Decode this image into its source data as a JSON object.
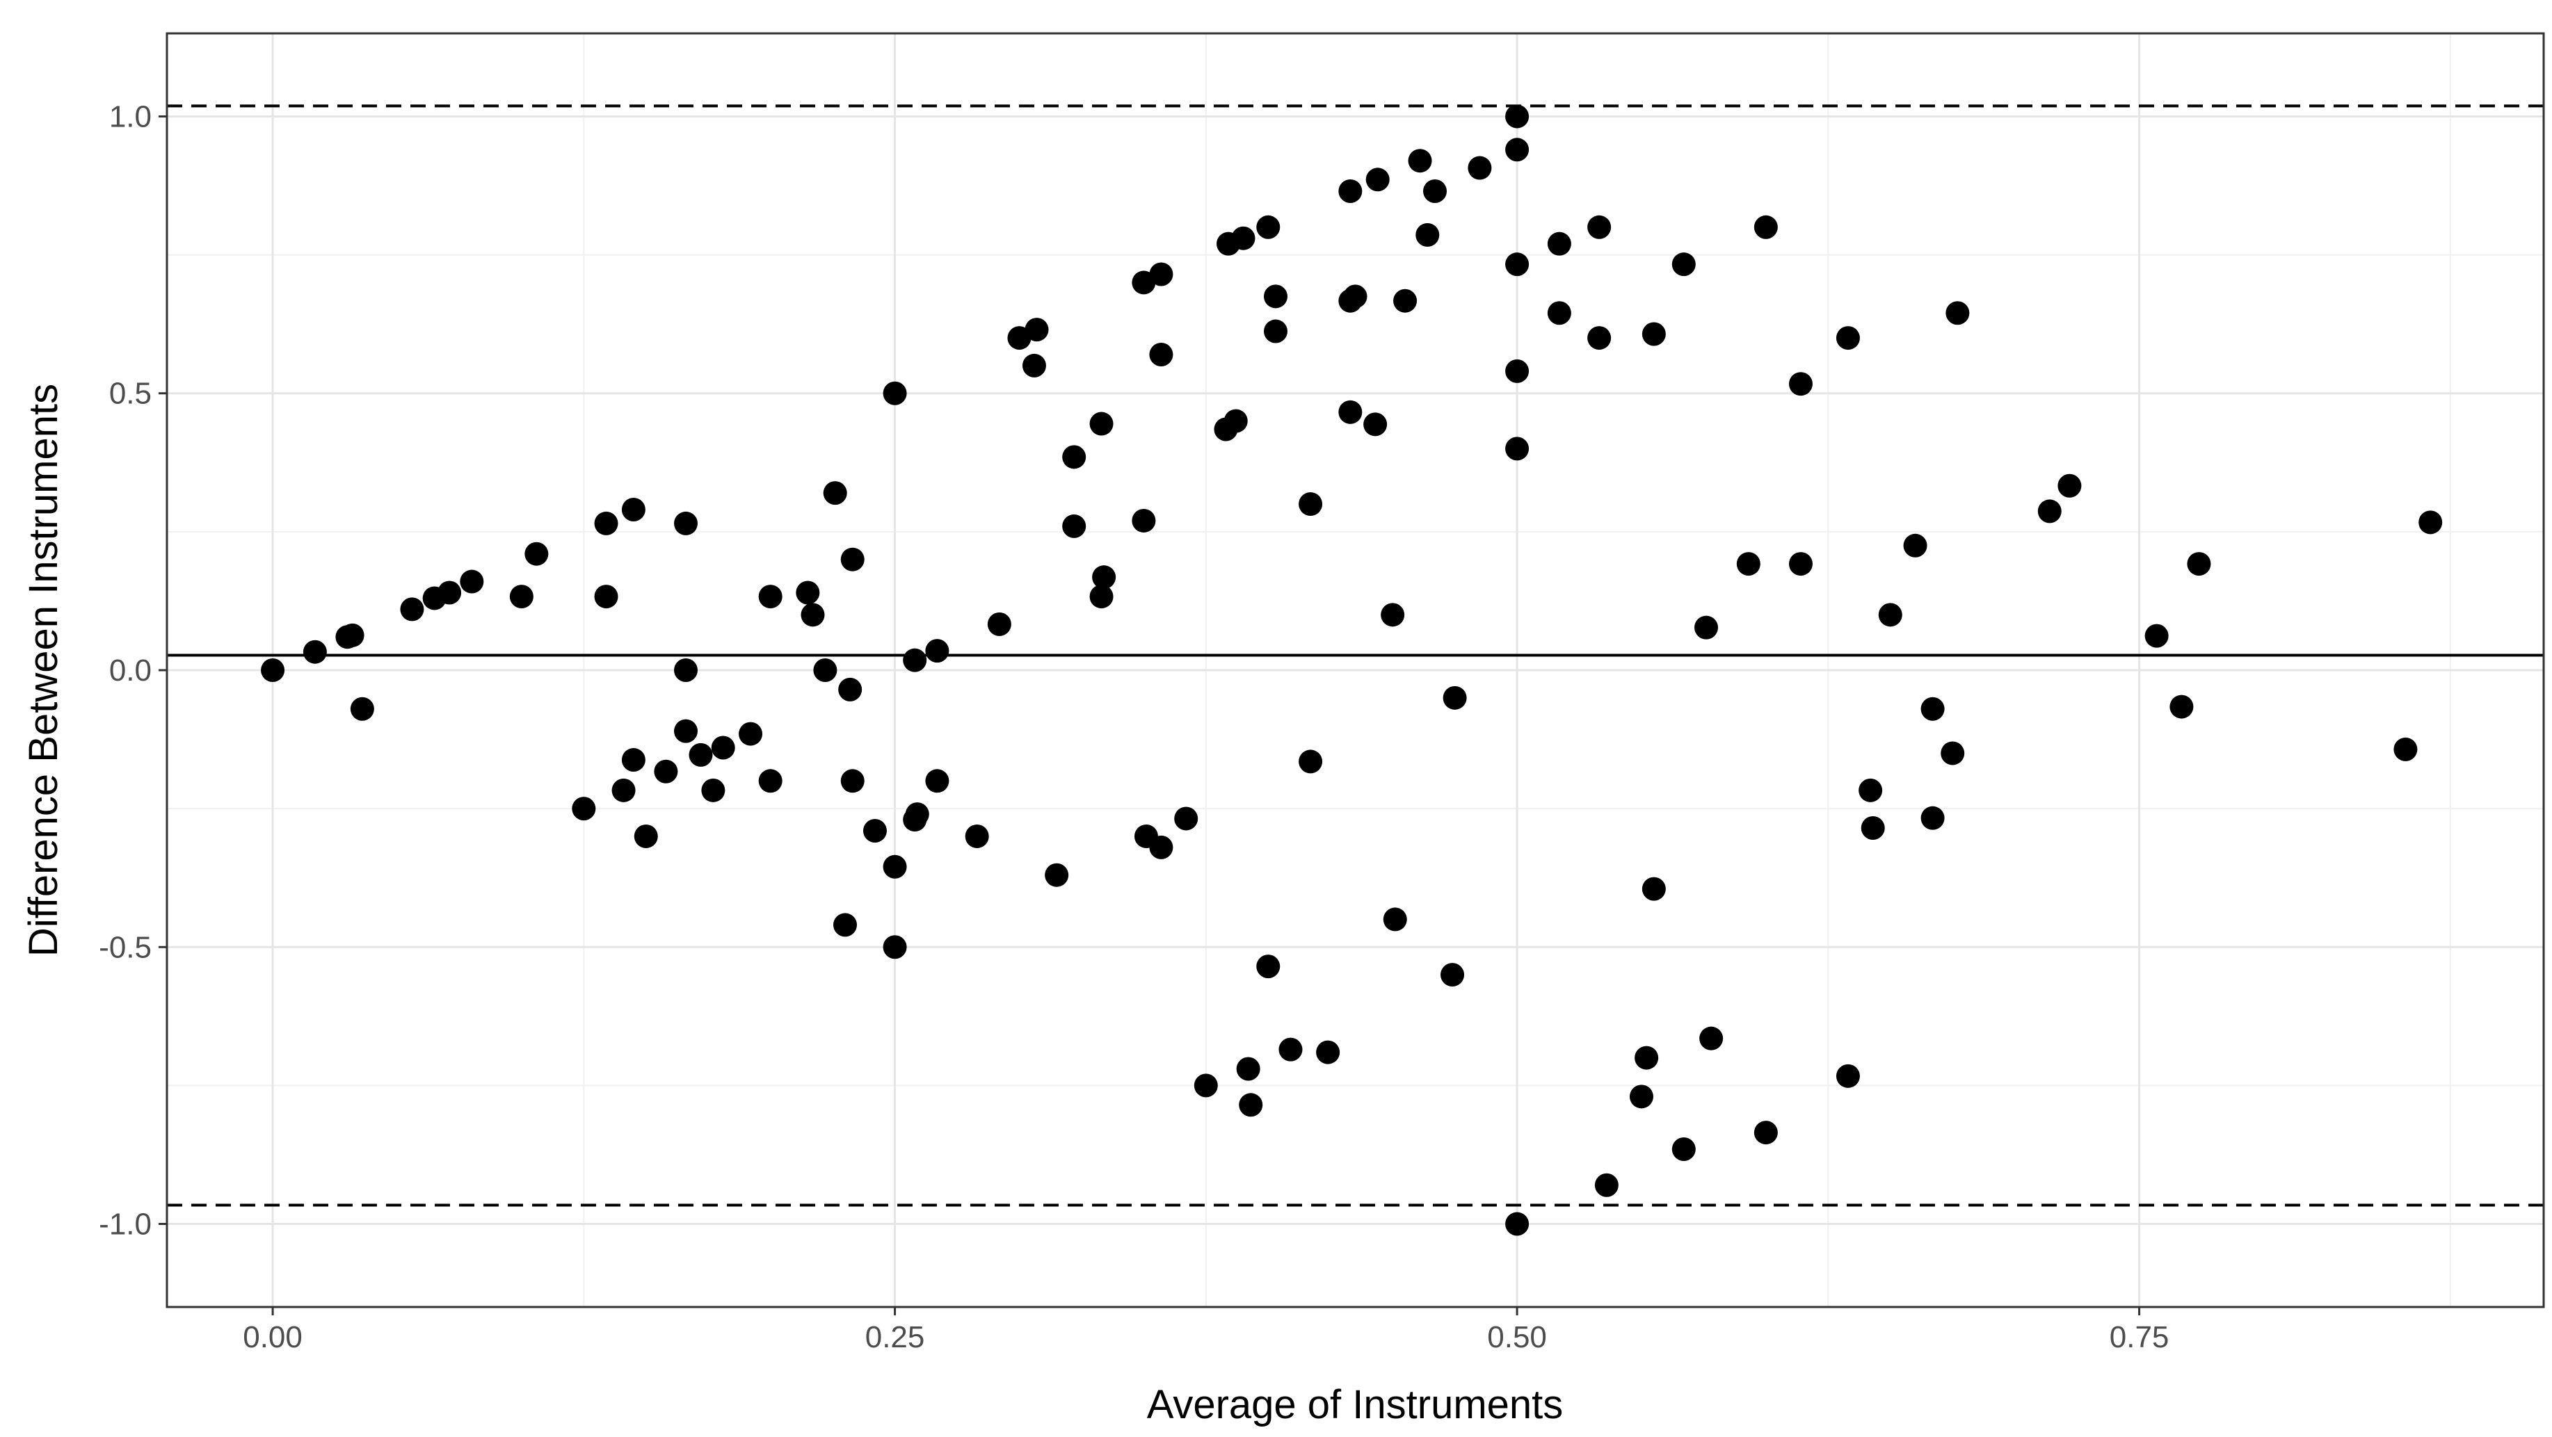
{
  "chart_data": {
    "type": "scatter",
    "title": "",
    "xlabel": "Average of Instruments",
    "ylabel": "Difference Between Instruments",
    "xlim": [
      -0.0425,
      0.9125
    ],
    "ylim": [
      -1.15,
      1.15
    ],
    "x_ticks": [
      0.0,
      0.25,
      0.5,
      0.75
    ],
    "x_tick_labels": [
      "0.00",
      "0.25",
      "0.50",
      "0.75"
    ],
    "y_ticks": [
      1.0,
      0.5,
      0.0,
      -0.5,
      -1.0
    ],
    "y_tick_labels": [
      "1.0",
      "0.5",
      "0.0",
      "-0.5",
      "-1.0"
    ],
    "grid": true,
    "reference_lines": {
      "mean_difference": 0.027,
      "upper_limit_of_agreement": 1.019,
      "lower_limit_of_agreement": -0.966
    },
    "points": [
      [
        0.0,
        0.0
      ],
      [
        0.017,
        0.033
      ],
      [
        0.03,
        0.06
      ],
      [
        0.032,
        0.063
      ],
      [
        0.036,
        -0.07
      ],
      [
        0.056,
        0.11
      ],
      [
        0.065,
        0.13
      ],
      [
        0.071,
        0.14
      ],
      [
        0.08,
        0.16
      ],
      [
        0.1,
        0.133
      ],
      [
        0.106,
        0.21
      ],
      [
        0.125,
        -0.25
      ],
      [
        0.134,
        0.265
      ],
      [
        0.134,
        0.133
      ],
      [
        0.141,
        -0.217
      ],
      [
        0.145,
        -0.162
      ],
      [
        0.145,
        0.29
      ],
      [
        0.15,
        -0.3
      ],
      [
        0.158,
        -0.183
      ],
      [
        0.166,
        0.265
      ],
      [
        0.166,
        0.0
      ],
      [
        0.166,
        -0.11
      ],
      [
        0.172,
        -0.153
      ],
      [
        0.177,
        -0.217
      ],
      [
        0.181,
        -0.14
      ],
      [
        0.192,
        -0.115
      ],
      [
        0.2,
        0.133
      ],
      [
        0.2,
        -0.2
      ],
      [
        0.215,
        0.14
      ],
      [
        0.217,
        0.1
      ],
      [
        0.222,
        0.0
      ],
      [
        0.226,
        0.32
      ],
      [
        0.23,
        -0.46
      ],
      [
        0.232,
        -0.035
      ],
      [
        0.233,
        -0.2
      ],
      [
        0.233,
        0.2
      ],
      [
        0.242,
        -0.29
      ],
      [
        0.25,
        0.5
      ],
      [
        0.25,
        -0.355
      ],
      [
        0.25,
        -0.5
      ],
      [
        0.258,
        0.018
      ],
      [
        0.258,
        -0.27
      ],
      [
        0.259,
        -0.26
      ],
      [
        0.267,
        0.035
      ],
      [
        0.267,
        -0.2
      ],
      [
        0.283,
        -0.3
      ],
      [
        0.292,
        0.083
      ],
      [
        0.3,
        0.6
      ],
      [
        0.306,
        0.55
      ],
      [
        0.307,
        0.615
      ],
      [
        0.315,
        -0.37
      ],
      [
        0.322,
        0.385
      ],
      [
        0.322,
        0.26
      ],
      [
        0.333,
        0.445
      ],
      [
        0.333,
        0.133
      ],
      [
        0.334,
        0.168
      ],
      [
        0.35,
        0.27
      ],
      [
        0.35,
        0.7
      ],
      [
        0.351,
        -0.3
      ],
      [
        0.357,
        0.715
      ],
      [
        0.357,
        -0.32
      ],
      [
        0.357,
        0.57
      ],
      [
        0.367,
        -0.268
      ],
      [
        0.375,
        -0.75
      ],
      [
        0.383,
        0.435
      ],
      [
        0.384,
        0.77
      ],
      [
        0.387,
        0.45
      ],
      [
        0.39,
        0.78
      ],
      [
        0.392,
        -0.72
      ],
      [
        0.393,
        -0.785
      ],
      [
        0.4,
        0.8
      ],
      [
        0.4,
        -0.535
      ],
      [
        0.403,
        0.675
      ],
      [
        0.403,
        0.612
      ],
      [
        0.409,
        -0.685
      ],
      [
        0.417,
        -0.165
      ],
      [
        0.417,
        0.3
      ],
      [
        0.424,
        -0.69
      ],
      [
        0.433,
        0.865
      ],
      [
        0.433,
        0.466
      ],
      [
        0.433,
        0.667
      ],
      [
        0.435,
        0.675
      ],
      [
        0.443,
        0.444
      ],
      [
        0.444,
        0.886
      ],
      [
        0.45,
        0.1
      ],
      [
        0.451,
        -0.45
      ],
      [
        0.455,
        0.667
      ],
      [
        0.461,
        0.92
      ],
      [
        0.464,
        0.786
      ],
      [
        0.467,
        0.865
      ],
      [
        0.474,
        -0.55
      ],
      [
        0.475,
        -0.05
      ],
      [
        0.485,
        0.907
      ],
      [
        0.5,
        1.0
      ],
      [
        0.5,
        0.94
      ],
      [
        0.5,
        0.733
      ],
      [
        0.5,
        0.54
      ],
      [
        0.5,
        0.4
      ],
      [
        0.5,
        -1.0
      ],
      [
        0.517,
        0.77
      ],
      [
        0.517,
        0.645
      ],
      [
        0.533,
        0.8
      ],
      [
        0.533,
        0.6
      ],
      [
        0.536,
        -0.93
      ],
      [
        0.55,
        -0.77
      ],
      [
        0.552,
        -0.7
      ],
      [
        0.555,
        0.607
      ],
      [
        0.555,
        -0.395
      ],
      [
        0.567,
        0.733
      ],
      [
        0.567,
        -0.865
      ],
      [
        0.576,
        0.077
      ],
      [
        0.578,
        -0.665
      ],
      [
        0.593,
        0.192
      ],
      [
        0.6,
        0.8
      ],
      [
        0.6,
        -0.835
      ],
      [
        0.614,
        0.517
      ],
      [
        0.614,
        0.192
      ],
      [
        0.633,
        0.6
      ],
      [
        0.633,
        -0.733
      ],
      [
        0.642,
        -0.217
      ],
      [
        0.643,
        -0.285
      ],
      [
        0.65,
        0.1
      ],
      [
        0.66,
        0.225
      ],
      [
        0.667,
        -0.07
      ],
      [
        0.667,
        -0.267
      ],
      [
        0.675,
        -0.15
      ],
      [
        0.677,
        0.645
      ],
      [
        0.714,
        0.287
      ],
      [
        0.722,
        0.333
      ],
      [
        0.757,
        0.062
      ],
      [
        0.767,
        -0.066
      ],
      [
        0.774,
        0.192
      ],
      [
        0.857,
        -0.143
      ],
      [
        0.867,
        0.267
      ]
    ]
  }
}
